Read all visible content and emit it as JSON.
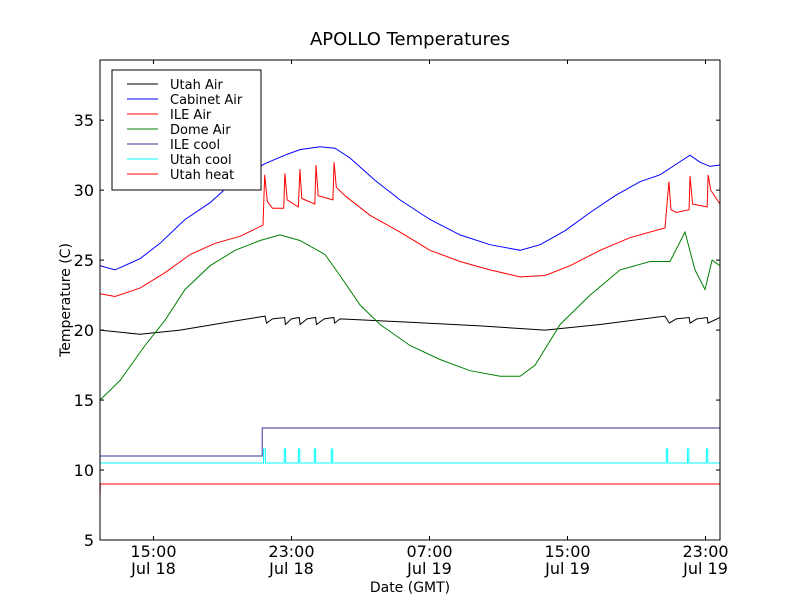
{
  "chart_data": {
    "type": "line",
    "title": "APOLLO Temperatures",
    "xlabel": "Date (GMT)",
    "ylabel": "Temperature (C)",
    "x_units": "hours since Jul 18 00:00 GMT",
    "xlim": [
      11.9,
      47.84
    ],
    "ylim": [
      5,
      39.3
    ],
    "grid": false,
    "legend_placement": "top-left",
    "xticks": [
      {
        "value": 15,
        "time": "15:00",
        "date": "Jul 18"
      },
      {
        "value": 23,
        "time": "23:00",
        "date": "Jul 18"
      },
      {
        "value": 31,
        "time": "07:00",
        "date": "Jul 19"
      },
      {
        "value": 39,
        "time": "15:00",
        "date": "Jul 19"
      },
      {
        "value": 47,
        "time": "23:00",
        "date": "Jul 19"
      }
    ],
    "yticks": [
      5,
      10,
      15,
      20,
      25,
      30,
      35
    ],
    "series": [
      {
        "name": "Utah Air",
        "color": "#000000",
        "points": [
          [
            11.9,
            20.0
          ],
          [
            14.22,
            19.7
          ],
          [
            16.54,
            20.0
          ],
          [
            19.44,
            20.6
          ],
          [
            21.47,
            21.0
          ],
          [
            21.55,
            20.5
          ],
          [
            21.9,
            20.8
          ],
          [
            22.6,
            20.9
          ],
          [
            22.65,
            20.4
          ],
          [
            23.0,
            20.8
          ],
          [
            23.45,
            20.9
          ],
          [
            23.5,
            20.4
          ],
          [
            23.9,
            20.8
          ],
          [
            24.4,
            20.9
          ],
          [
            24.45,
            20.4
          ],
          [
            24.9,
            20.8
          ],
          [
            25.45,
            20.9
          ],
          [
            25.5,
            20.5
          ],
          [
            25.81,
            20.8
          ],
          [
            29.29,
            20.6
          ],
          [
            33.93,
            20.3
          ],
          [
            37.7,
            20.0
          ],
          [
            40.89,
            20.4
          ],
          [
            44.65,
            21.0
          ],
          [
            44.9,
            20.5
          ],
          [
            45.3,
            20.8
          ],
          [
            46.05,
            20.9
          ],
          [
            46.1,
            20.5
          ],
          [
            46.5,
            20.8
          ],
          [
            47.1,
            20.9
          ],
          [
            47.15,
            20.5
          ],
          [
            47.84,
            20.9
          ]
        ]
      },
      {
        "name": "Cabinet Air",
        "color": "#0000ff",
        "points": [
          [
            11.9,
            24.6
          ],
          [
            12.77,
            24.3
          ],
          [
            14.22,
            25.1
          ],
          [
            15.38,
            26.2
          ],
          [
            16.83,
            27.9
          ],
          [
            18.28,
            29.1
          ],
          [
            19.44,
            30.4
          ],
          [
            20.6,
            31.3
          ],
          [
            21.47,
            31.9
          ],
          [
            22.62,
            32.5
          ],
          [
            23.49,
            32.9
          ],
          [
            24.65,
            33.1
          ],
          [
            25.52,
            33.0
          ],
          [
            26.39,
            32.3
          ],
          [
            27.84,
            30.7
          ],
          [
            29.29,
            29.3
          ],
          [
            31.03,
            27.9
          ],
          [
            32.77,
            26.8
          ],
          [
            34.51,
            26.1
          ],
          [
            36.25,
            25.7
          ],
          [
            37.41,
            26.1
          ],
          [
            38.86,
            27.1
          ],
          [
            40.31,
            28.4
          ],
          [
            41.76,
            29.6
          ],
          [
            43.2,
            30.6
          ],
          [
            44.36,
            31.1
          ],
          [
            45.23,
            31.8
          ],
          [
            46.1,
            32.5
          ],
          [
            46.68,
            32.0
          ],
          [
            47.26,
            31.7
          ],
          [
            47.84,
            31.8
          ]
        ]
      },
      {
        "name": "ILE Air",
        "color": "#ff0000",
        "points": [
          [
            11.9,
            22.6
          ],
          [
            12.77,
            22.4
          ],
          [
            14.22,
            23.0
          ],
          [
            15.67,
            24.1
          ],
          [
            17.12,
            25.4
          ],
          [
            18.57,
            26.2
          ],
          [
            20.02,
            26.7
          ],
          [
            21.35,
            27.5
          ],
          [
            21.45,
            31.1
          ],
          [
            21.6,
            29.2
          ],
          [
            21.9,
            28.7
          ],
          [
            22.55,
            28.7
          ],
          [
            22.62,
            31.2
          ],
          [
            22.75,
            29.3
          ],
          [
            23.4,
            28.8
          ],
          [
            23.49,
            31.5
          ],
          [
            23.6,
            29.4
          ],
          [
            24.35,
            29.0
          ],
          [
            24.42,
            31.8
          ],
          [
            24.55,
            29.6
          ],
          [
            25.4,
            29.3
          ],
          [
            25.47,
            32.0
          ],
          [
            25.6,
            30.2
          ],
          [
            26.1,
            29.6
          ],
          [
            27.55,
            28.2
          ],
          [
            29.29,
            27.0
          ],
          [
            31.03,
            25.7
          ],
          [
            32.77,
            24.9
          ],
          [
            34.51,
            24.3
          ],
          [
            36.25,
            23.8
          ],
          [
            37.7,
            23.9
          ],
          [
            39.15,
            24.6
          ],
          [
            40.89,
            25.7
          ],
          [
            42.62,
            26.6
          ],
          [
            44.65,
            27.3
          ],
          [
            44.88,
            30.6
          ],
          [
            45.0,
            28.6
          ],
          [
            45.3,
            28.4
          ],
          [
            46.05,
            28.6
          ],
          [
            46.1,
            31.0
          ],
          [
            46.25,
            29.0
          ],
          [
            47.1,
            28.8
          ],
          [
            47.15,
            31.1
          ],
          [
            47.3,
            30.0
          ],
          [
            47.84,
            29.0
          ]
        ]
      },
      {
        "name": "Dome Air",
        "color": "#008000",
        "points": [
          [
            11.9,
            15.0
          ],
          [
            13.06,
            16.4
          ],
          [
            14.51,
            18.9
          ],
          [
            15.67,
            20.7
          ],
          [
            16.83,
            22.9
          ],
          [
            18.28,
            24.6
          ],
          [
            19.73,
            25.7
          ],
          [
            21.18,
            26.4
          ],
          [
            22.33,
            26.8
          ],
          [
            23.49,
            26.4
          ],
          [
            24.94,
            25.4
          ],
          [
            25.81,
            23.9
          ],
          [
            26.97,
            21.8
          ],
          [
            28.13,
            20.4
          ],
          [
            29.87,
            18.9
          ],
          [
            31.61,
            17.9
          ],
          [
            33.35,
            17.1
          ],
          [
            35.09,
            16.7
          ],
          [
            36.25,
            16.7
          ],
          [
            37.12,
            17.5
          ],
          [
            38.57,
            20.4
          ],
          [
            40.31,
            22.5
          ],
          [
            42.05,
            24.3
          ],
          [
            43.78,
            24.9
          ],
          [
            44.94,
            24.9
          ],
          [
            45.81,
            27.0
          ],
          [
            46.39,
            24.3
          ],
          [
            46.97,
            22.9
          ],
          [
            47.38,
            25.0
          ],
          [
            47.84,
            24.6
          ]
        ]
      },
      {
        "name": "ILE cool",
        "color": "#333399",
        "points": [
          [
            11.9,
            11.0
          ],
          [
            21.3,
            11.0
          ],
          [
            21.3,
            13.0
          ],
          [
            47.84,
            13.0
          ]
        ]
      },
      {
        "name": "Utah cool",
        "color": "#00ffff",
        "points": [
          [
            11.9,
            10.5
          ],
          [
            21.38,
            10.5
          ],
          [
            21.38,
            11.5
          ],
          [
            21.48,
            11.5
          ],
          [
            21.48,
            10.5
          ],
          [
            22.58,
            10.5
          ],
          [
            22.58,
            11.5
          ],
          [
            22.66,
            11.5
          ],
          [
            22.66,
            10.5
          ],
          [
            23.4,
            10.5
          ],
          [
            23.4,
            11.5
          ],
          [
            23.48,
            11.5
          ],
          [
            23.48,
            10.5
          ],
          [
            24.32,
            10.5
          ],
          [
            24.32,
            11.5
          ],
          [
            24.4,
            11.5
          ],
          [
            24.4,
            10.5
          ],
          [
            25.31,
            10.5
          ],
          [
            25.31,
            11.5
          ],
          [
            25.39,
            11.5
          ],
          [
            25.39,
            10.5
          ],
          [
            44.73,
            10.5
          ],
          [
            44.73,
            11.5
          ],
          [
            44.81,
            11.5
          ],
          [
            44.81,
            10.5
          ],
          [
            45.95,
            10.5
          ],
          [
            45.95,
            11.5
          ],
          [
            46.03,
            11.5
          ],
          [
            46.03,
            10.5
          ],
          [
            47.05,
            10.5
          ],
          [
            47.05,
            11.5
          ],
          [
            47.13,
            11.5
          ],
          [
            47.13,
            10.5
          ],
          [
            47.84,
            10.5
          ]
        ]
      },
      {
        "name": "Utah heat",
        "color": "#ff0000",
        "points": [
          [
            11.9,
            8.0
          ],
          [
            11.92,
            9.0
          ],
          [
            47.84,
            9.0
          ]
        ]
      }
    ]
  }
}
